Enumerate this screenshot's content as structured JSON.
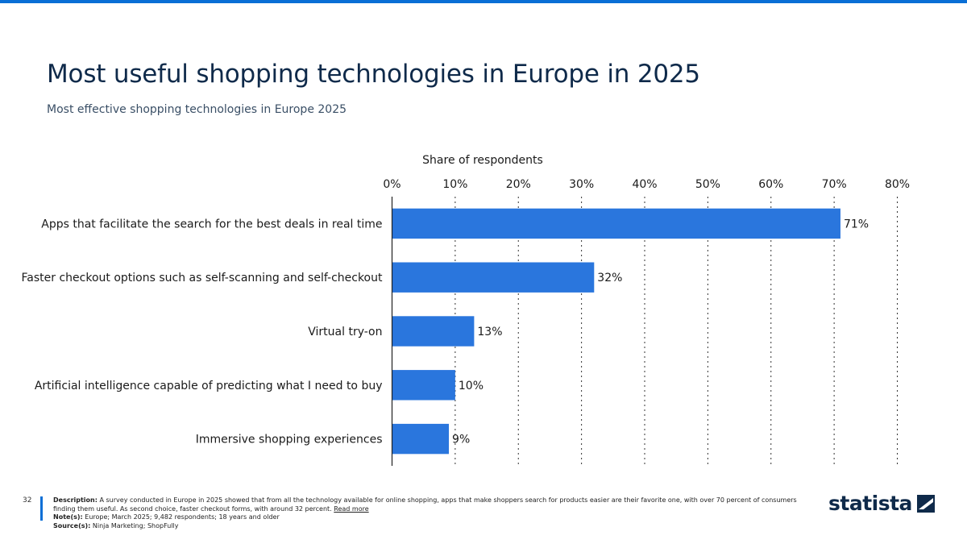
{
  "header": {
    "title": "Most useful shopping technologies in Europe in 2025",
    "subtitle": "Most effective shopping technologies in Europe 2025"
  },
  "colors": {
    "accent": "#0a6fd6",
    "bar": "#2a76dd",
    "title": "#0f2a4a"
  },
  "chart_data": {
    "type": "bar",
    "orientation": "horizontal",
    "xlabel": "Share of respondents",
    "xlim": [
      0,
      80
    ],
    "ticks": [
      "0%",
      "10%",
      "20%",
      "30%",
      "40%",
      "50%",
      "60%",
      "70%",
      "80%"
    ],
    "tick_values": [
      0,
      10,
      20,
      30,
      40,
      50,
      60,
      70,
      80
    ],
    "grid": true,
    "categories": [
      "Apps that facilitate the search for the best deals in real time",
      "Faster checkout options such as self-scanning and self-checkout",
      "Virtual try-on",
      "Artificial intelligence capable of predicting what I need to buy",
      "Immersive shopping experiences"
    ],
    "values": [
      71,
      32,
      13,
      10,
      9
    ],
    "data_labels": [
      "71%",
      "32%",
      "13%",
      "10%",
      "9%"
    ]
  },
  "footer": {
    "page_number": "32",
    "description_label": "Description:",
    "description": "A survey conducted in Europe in 2025 showed that from all the technology available for online shopping, apps that make shoppers search for products easier are their favorite one, with over 70 percent of consumers finding them useful. As second choice, faster checkout forms, with around 32 percent.",
    "read_more": "Read more",
    "note_label": "Note(s):",
    "note": "Europe; March 2025; 9,482 respondents; 18 years and older",
    "source_label": "Source(s):",
    "source": "Ninja Marketing; ShopFully",
    "logo_text": "statista",
    "logo_icon": "statista-logo-icon"
  }
}
